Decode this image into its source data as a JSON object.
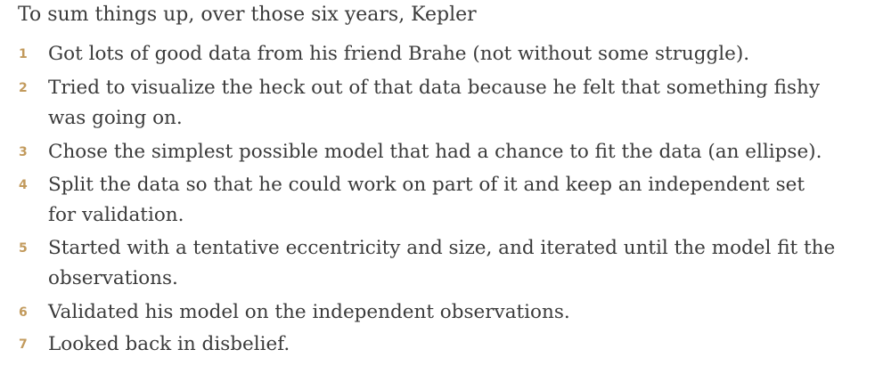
{
  "intro": "To sum things up, over those six years, Kepler",
  "items": [
    {
      "number": "1",
      "lines": [
        "Got lots of good data from his friend Brahe (not without some struggle)."
      ]
    },
    {
      "number": "2",
      "lines": [
        "Tried to visualize the heck out of that data because he felt that something fishy",
        "was going on."
      ]
    },
    {
      "number": "3",
      "lines": [
        "Chose the simplest possible model that had a chance to fit the data (an ellipse)."
      ]
    },
    {
      "number": "4",
      "lines": [
        "Split the data so that he could work on part of it and keep an independent set",
        "for validation."
      ]
    },
    {
      "number": "5",
      "lines": [
        "Started with a tentative eccentricity and size, and iterated until the model fit the",
        "observations."
      ]
    },
    {
      "number": "6",
      "lines": [
        "Validated his model on the independent observations."
      ]
    },
    {
      "number": "7",
      "lines": [
        "Looked back in disbelief."
      ]
    }
  ],
  "colors": {
    "text": "#3a3a3a",
    "number": "#c29a5c",
    "background": "#ffffff"
  }
}
